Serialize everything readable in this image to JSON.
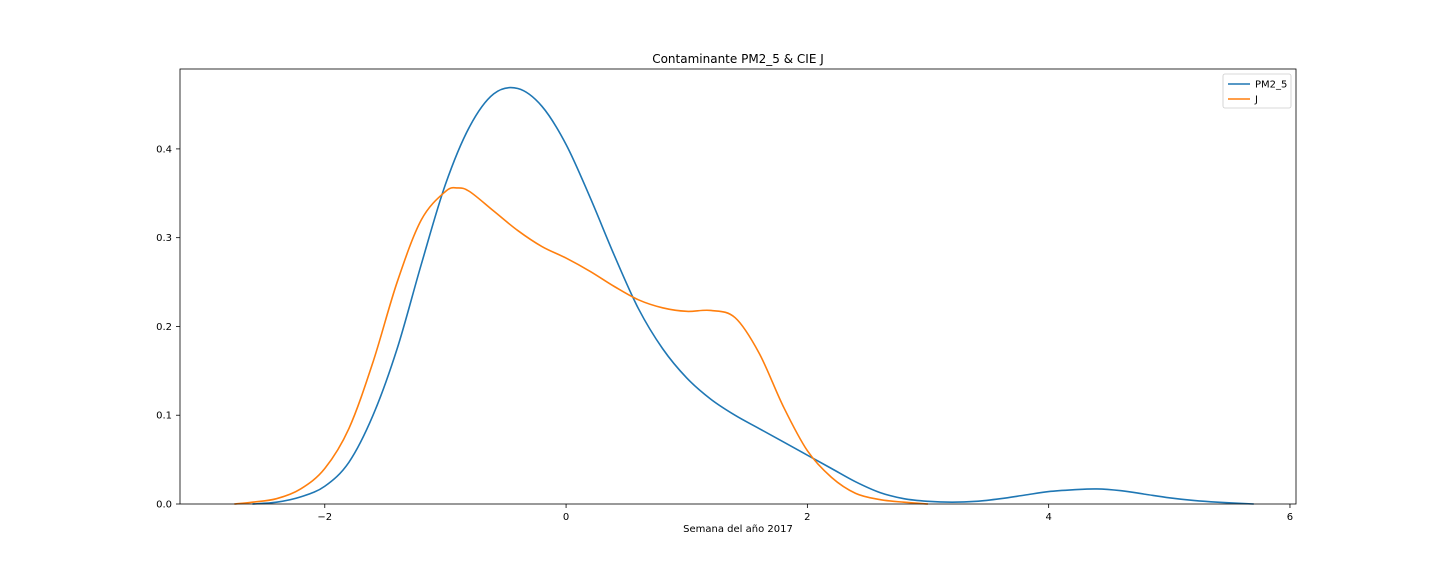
{
  "chart_data": {
    "type": "line",
    "title": "Contaminante PM2_5 & CIE J",
    "xlabel": "Semana del año 2017",
    "ylabel": "",
    "xlim": [
      -3.2,
      6.05
    ],
    "ylim": [
      0,
      0.49
    ],
    "xticks": [
      -2,
      0,
      2,
      4,
      6
    ],
    "xtick_labels": [
      "−2",
      "0",
      "2",
      "4",
      "6"
    ],
    "yticks": [
      0.0,
      0.1,
      0.2,
      0.3,
      0.4
    ],
    "ytick_labels": [
      "0.0",
      "0.1",
      "0.2",
      "0.3",
      "0.4"
    ],
    "grid": false,
    "legend_position": "top-right",
    "series": [
      {
        "name": "PM2_5",
        "color": "#1f77b4",
        "x": [
          -2.6,
          -2.4,
          -2.2,
          -2.0,
          -1.8,
          -1.6,
          -1.4,
          -1.2,
          -1.0,
          -0.8,
          -0.6,
          -0.4,
          -0.2,
          0.0,
          0.2,
          0.4,
          0.6,
          0.8,
          1.0,
          1.2,
          1.4,
          1.6,
          1.8,
          2.0,
          2.2,
          2.4,
          2.6,
          2.8,
          3.0,
          3.2,
          3.4,
          3.6,
          3.8,
          4.0,
          4.2,
          4.4,
          4.6,
          4.8,
          5.0,
          5.2,
          5.4,
          5.7
        ],
        "y": [
          0.0,
          0.002,
          0.008,
          0.02,
          0.047,
          0.1,
          0.175,
          0.27,
          0.36,
          0.425,
          0.462,
          0.468,
          0.448,
          0.405,
          0.345,
          0.28,
          0.22,
          0.175,
          0.142,
          0.118,
          0.1,
          0.085,
          0.07,
          0.055,
          0.04,
          0.025,
          0.013,
          0.006,
          0.003,
          0.002,
          0.003,
          0.006,
          0.01,
          0.014,
          0.016,
          0.017,
          0.015,
          0.011,
          0.007,
          0.004,
          0.002,
          0.0
        ]
      },
      {
        "name": "J",
        "color": "#ff7f0e",
        "x": [
          -2.75,
          -2.6,
          -2.4,
          -2.2,
          -2.0,
          -1.8,
          -1.6,
          -1.4,
          -1.2,
          -1.0,
          -0.9,
          -0.8,
          -0.6,
          -0.4,
          -0.2,
          0.0,
          0.2,
          0.4,
          0.6,
          0.8,
          1.0,
          1.2,
          1.4,
          1.6,
          1.8,
          2.0,
          2.2,
          2.4,
          2.6,
          2.8,
          3.0
        ],
        "y": [
          0.0,
          0.002,
          0.006,
          0.017,
          0.04,
          0.085,
          0.16,
          0.25,
          0.32,
          0.352,
          0.356,
          0.352,
          0.33,
          0.308,
          0.29,
          0.277,
          0.262,
          0.245,
          0.23,
          0.221,
          0.217,
          0.218,
          0.21,
          0.17,
          0.11,
          0.06,
          0.03,
          0.012,
          0.005,
          0.002,
          0.0
        ]
      }
    ]
  }
}
